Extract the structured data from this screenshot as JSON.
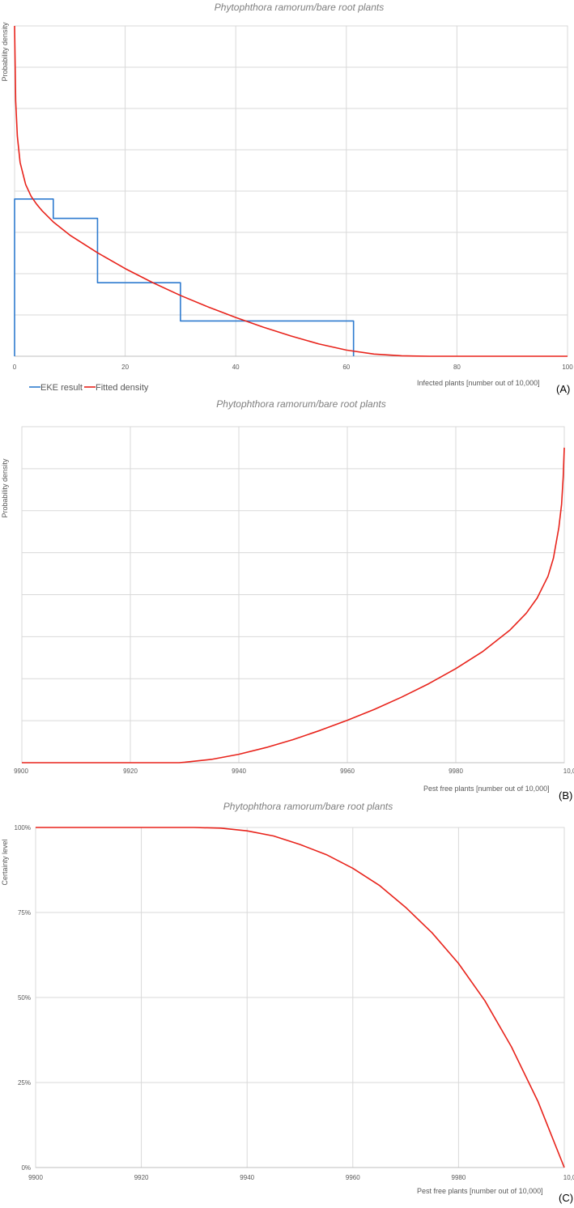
{
  "colors": {
    "eke": "#2e7bcf",
    "fitted": "#e8231b",
    "grid": "#d9d9d9"
  },
  "chart_data": [
    {
      "type": "line",
      "panel_label": "(A)",
      "title": "Phytophthora ramorum/bare root plants",
      "xlabel": "Infected plants [number out of 10,000]",
      "ylabel": "Probability density",
      "xlim": [
        0,
        100
      ],
      "ylim": [
        0,
        0.075
      ],
      "x_ticks": [
        0,
        20,
        40,
        60,
        80,
        100
      ],
      "x_tick_labels": [
        "0",
        "20",
        "40",
        "60",
        "80",
        "100"
      ],
      "y_grid_lines": 8,
      "grid": true,
      "legend_position": "bottom-left",
      "legend": [
        "EKE result",
        "Fitted density"
      ],
      "series": [
        {
          "name": "EKE result",
          "style": "step",
          "color": "#2e7bcf",
          "bins": [
            {
              "from": 0,
              "to": 7,
              "density": 0.0357
            },
            {
              "from": 7,
              "to": 15,
              "density": 0.0313
            },
            {
              "from": 15,
              "to": 30,
              "density": 0.0167
            },
            {
              "from": 30,
              "to": 61.3,
              "density": 0.008
            }
          ]
        },
        {
          "name": "Fitted density",
          "style": "line",
          "color": "#e8231b",
          "x": [
            0,
            0.2,
            0.5,
            1,
            2,
            3,
            4,
            5,
            7,
            10,
            15,
            20,
            25,
            30,
            35,
            40,
            45,
            50,
            55,
            60,
            65,
            70,
            75,
            80,
            90,
            100
          ],
          "y": [
            0.075,
            0.058,
            0.05,
            0.044,
            0.039,
            0.0363,
            0.0345,
            0.033,
            0.0305,
            0.0275,
            0.0235,
            0.0199,
            0.0167,
            0.0138,
            0.0112,
            0.0088,
            0.0066,
            0.0046,
            0.0028,
            0.0014,
            0.0005,
            0.0001,
            0,
            0,
            0,
            0
          ]
        }
      ]
    },
    {
      "type": "line",
      "panel_label": "(B)",
      "title": "Phytophthora ramorum/bare root plants",
      "xlabel": "Pest free plants [number out of 10,000]",
      "ylabel": "Probability density",
      "xlim": [
        9900,
        10000
      ],
      "ylim": [
        0,
        0.08
      ],
      "x_ticks": [
        9900,
        9920,
        9940,
        9960,
        9980,
        10000
      ],
      "x_tick_labels": [
        "9900",
        "9920",
        "9940",
        "9960",
        "9980",
        "10,000"
      ],
      "y_grid_lines": 8,
      "grid": true,
      "series": [
        {
          "name": "Fitted density",
          "style": "line",
          "color": "#e8231b",
          "x": [
            9900,
            9910,
            9920,
            9929,
            9930,
            9935,
            9940,
            9945,
            9950,
            9955,
            9960,
            9965,
            9970,
            9975,
            9980,
            9985,
            9990,
            9993,
            9995,
            9997,
            9998,
            9999,
            9999.5,
            9999.8,
            10000
          ],
          "y": [
            0,
            0,
            0,
            0,
            0.0001,
            0.0008,
            0.002,
            0.0036,
            0.0055,
            0.0077,
            0.0101,
            0.0127,
            0.0156,
            0.0188,
            0.0224,
            0.0265,
            0.0316,
            0.0356,
            0.0392,
            0.0444,
            0.0487,
            0.056,
            0.0615,
            0.068,
            0.075
          ]
        }
      ]
    },
    {
      "type": "line",
      "panel_label": "(C)",
      "title": "Phytophthora ramorum/bare root plants",
      "xlabel": "Pest free plants [number out of 10,000]",
      "ylabel": "Certainty level",
      "xlim": [
        9900,
        10000
      ],
      "ylim": [
        0,
        1
      ],
      "x_ticks": [
        9900,
        9920,
        9940,
        9960,
        9980,
        10000
      ],
      "x_tick_labels": [
        "9900",
        "9920",
        "9940",
        "9960",
        "9980",
        "10,000"
      ],
      "y_ticks": [
        0,
        0.25,
        0.5,
        0.75,
        1
      ],
      "y_tick_labels": [
        "0%",
        "25%",
        "50%",
        "75%",
        "100%"
      ],
      "grid": true,
      "series": [
        {
          "name": "Certainty",
          "style": "line",
          "color": "#e8231b",
          "x": [
            9900,
            9910,
            9920,
            9930,
            9935,
            9940,
            9945,
            9950,
            9955,
            9960,
            9965,
            9970,
            9975,
            9980,
            9985,
            9990,
            9995,
            10000
          ],
          "y": [
            1,
            1,
            1,
            1,
            0.998,
            0.99,
            0.975,
            0.95,
            0.92,
            0.88,
            0.83,
            0.765,
            0.69,
            0.6,
            0.49,
            0.355,
            0.195,
            0
          ]
        }
      ]
    }
  ]
}
